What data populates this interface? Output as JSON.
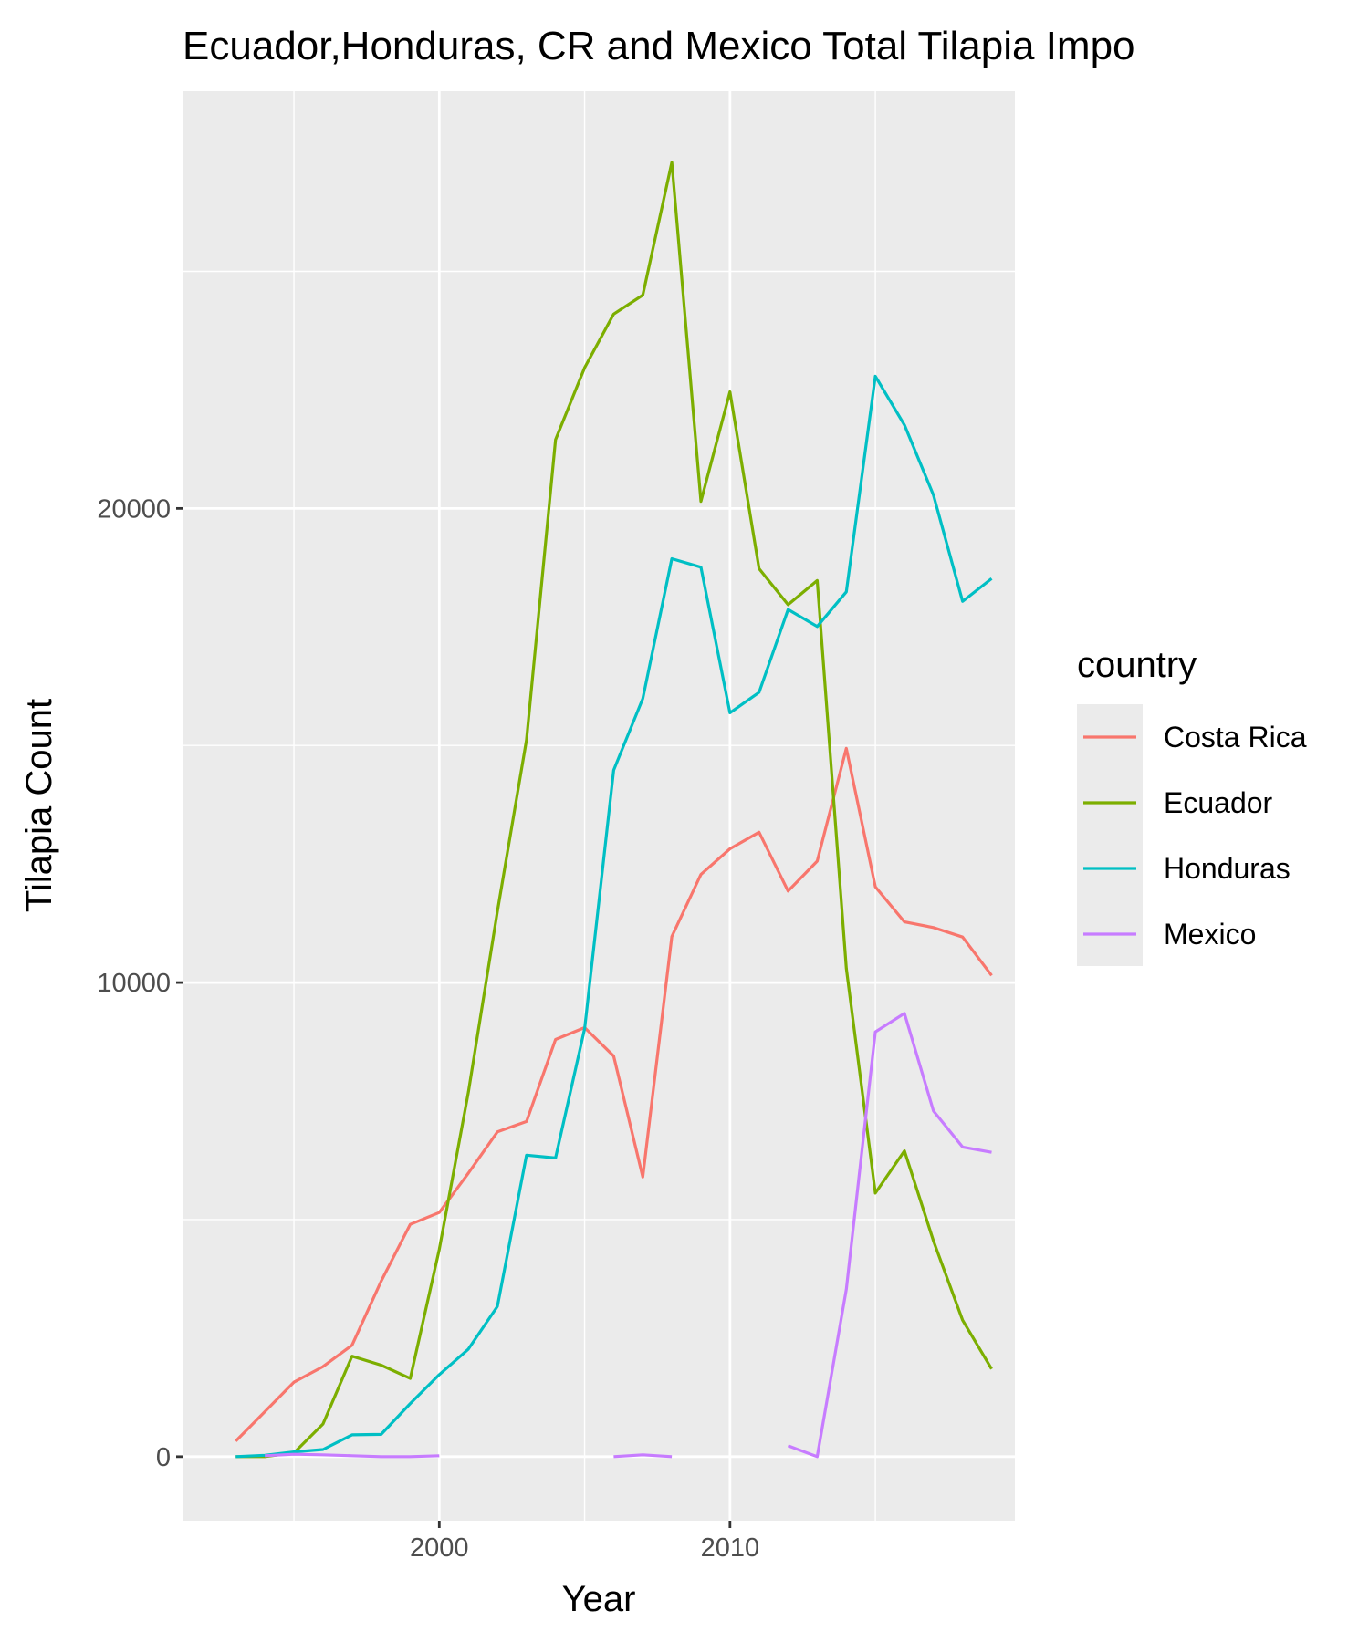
{
  "chart_data": {
    "type": "line",
    "title": "Ecuador,Honduras, CR and Mexico Total Tilapia Impo",
    "xlabel": "Year",
    "ylabel": "Tilapia Count",
    "xlim": [
      1991.2,
      2019.8
    ],
    "ylim": [
      -1350,
      28800
    ],
    "x_ticks": [
      2000,
      2010
    ],
    "x_minor_ticks": [
      1995,
      2005,
      2015
    ],
    "y_ticks": [
      0,
      10000,
      20000
    ],
    "y_minor_ticks": [
      5000,
      15000,
      25000
    ],
    "grid": true,
    "legend": {
      "title": "country",
      "position": "right"
    },
    "series": [
      {
        "name": "Costa Rica",
        "color": "#F8766D",
        "points": [
          [
            1993,
            330
          ],
          [
            1994,
            950
          ],
          [
            1995,
            1570
          ],
          [
            1996,
            1900
          ],
          [
            1997,
            2350
          ],
          [
            1998,
            3700
          ],
          [
            1999,
            4900
          ],
          [
            2000,
            5150
          ],
          [
            2001,
            5980
          ],
          [
            2002,
            6850
          ],
          [
            2003,
            7070
          ],
          [
            2004,
            8800
          ],
          [
            2005,
            9050
          ],
          [
            2006,
            8450
          ],
          [
            2007,
            5900
          ],
          [
            2008,
            10970
          ],
          [
            2009,
            12280
          ],
          [
            2010,
            12820
          ],
          [
            2011,
            13170
          ],
          [
            2012,
            11930
          ],
          [
            2013,
            12560
          ],
          [
            2014,
            14940
          ],
          [
            2015,
            12020
          ],
          [
            2016,
            11280
          ],
          [
            2017,
            11160
          ],
          [
            2018,
            10960
          ],
          [
            2019,
            10150
          ]
        ]
      },
      {
        "name": "Ecuador",
        "color": "#7CAE00",
        "points": [
          [
            1993,
            0
          ],
          [
            1994,
            0
          ],
          [
            1995,
            80
          ],
          [
            1996,
            690
          ],
          [
            1997,
            2120
          ],
          [
            1998,
            1930
          ],
          [
            1999,
            1650
          ],
          [
            2000,
            4370
          ],
          [
            2001,
            7690
          ],
          [
            2002,
            11500
          ],
          [
            2003,
            15120
          ],
          [
            2004,
            21450
          ],
          [
            2005,
            22970
          ],
          [
            2006,
            24100
          ],
          [
            2007,
            24500
          ],
          [
            2008,
            27300
          ],
          [
            2009,
            20150
          ],
          [
            2010,
            22460
          ],
          [
            2011,
            18730
          ],
          [
            2012,
            17970
          ],
          [
            2013,
            18480
          ],
          [
            2014,
            10300
          ],
          [
            2015,
            5560
          ],
          [
            2016,
            6450
          ],
          [
            2017,
            4550
          ],
          [
            2018,
            2880
          ],
          [
            2019,
            1850
          ]
        ]
      },
      {
        "name": "Honduras",
        "color": "#00BFC4",
        "points": [
          [
            1993,
            0
          ],
          [
            1994,
            30
          ],
          [
            1995,
            100
          ],
          [
            1996,
            150
          ],
          [
            1997,
            460
          ],
          [
            1998,
            470
          ],
          [
            1999,
            1120
          ],
          [
            2000,
            1730
          ],
          [
            2001,
            2270
          ],
          [
            2002,
            3170
          ],
          [
            2003,
            6360
          ],
          [
            2004,
            6300
          ],
          [
            2005,
            9030
          ],
          [
            2006,
            14480
          ],
          [
            2007,
            15990
          ],
          [
            2008,
            18940
          ],
          [
            2009,
            18760
          ],
          [
            2010,
            15690
          ],
          [
            2011,
            16120
          ],
          [
            2012,
            17870
          ],
          [
            2013,
            17510
          ],
          [
            2014,
            18240
          ],
          [
            2015,
            22790
          ],
          [
            2016,
            21760
          ],
          [
            2017,
            20280
          ],
          [
            2018,
            18040
          ],
          [
            2019,
            18520
          ]
        ]
      },
      {
        "name": "Mexico",
        "color": "#C77CFF",
        "points": [
          [
            1993,
            null
          ],
          [
            1994,
            20
          ],
          [
            1995,
            50
          ],
          [
            1996,
            40
          ],
          [
            1997,
            20
          ],
          [
            1998,
            0
          ],
          [
            1999,
            0
          ],
          [
            2000,
            20
          ],
          [
            2001,
            null
          ],
          [
            2002,
            null
          ],
          [
            2003,
            null
          ],
          [
            2004,
            null
          ],
          [
            2005,
            null
          ],
          [
            2006,
            0
          ],
          [
            2007,
            40
          ],
          [
            2008,
            0
          ],
          [
            2009,
            null
          ],
          [
            2010,
            null
          ],
          [
            2011,
            null
          ],
          [
            2012,
            230
          ],
          [
            2013,
            0
          ],
          [
            2014,
            3530
          ],
          [
            2015,
            8960
          ],
          [
            2016,
            9350
          ],
          [
            2017,
            7290
          ],
          [
            2018,
            6530
          ],
          [
            2019,
            6420
          ]
        ]
      }
    ]
  }
}
